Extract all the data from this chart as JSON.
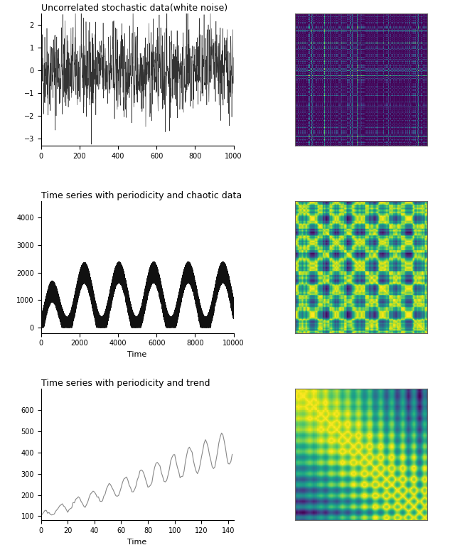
{
  "title1": "Uncorrelated stochastic data(white noise)",
  "title2": "Time series with periodicity and chaotic data",
  "title3": "Time series with periodicity and trend",
  "xlabel2": "Time",
  "xlabel3": "Time",
  "ts1_n": 1000,
  "ts1_seed": 42,
  "ts2_n": 10000,
  "ts2_seed": 7,
  "ts3_n": 144,
  "ts3_seed": 0,
  "background_color": "#ffffff",
  "line_color1": "#333333",
  "line_color2": "#111111",
  "line_color3": "#888888",
  "cmap": "viridis",
  "mat_pts1": 200,
  "mat_pts2": 100,
  "mat_pts3": 144
}
